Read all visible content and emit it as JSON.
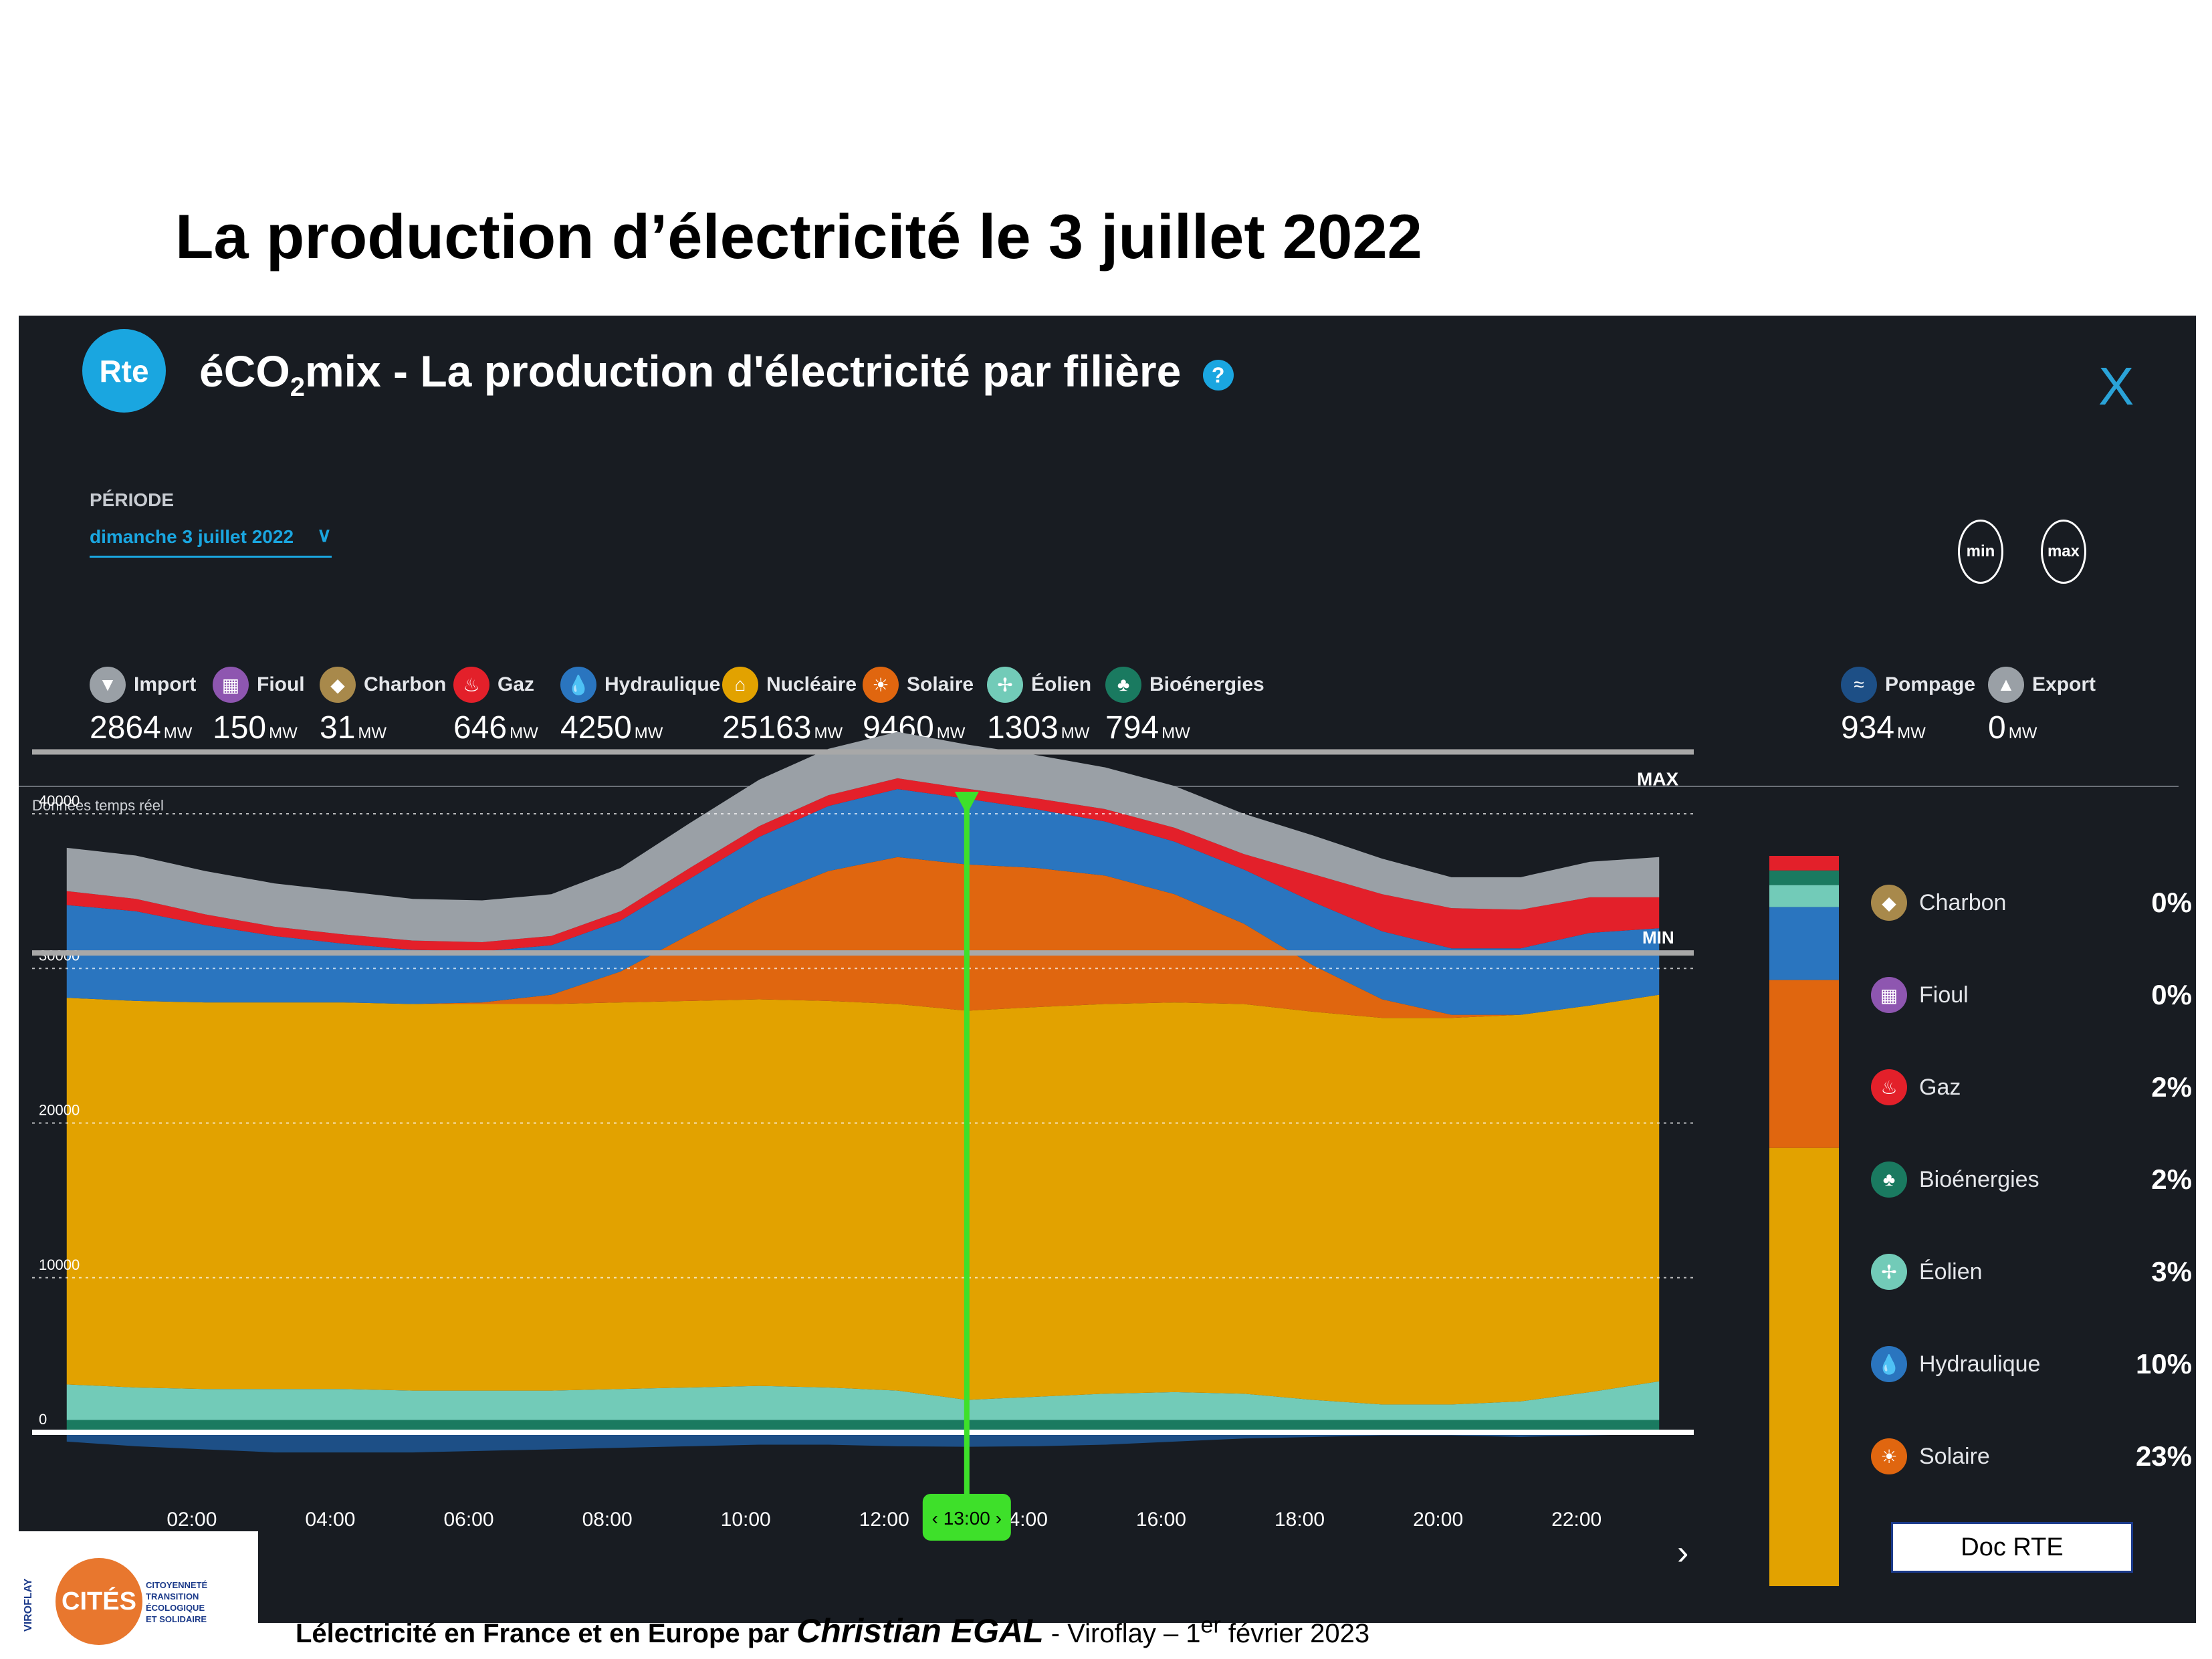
{
  "slide_title": "La production d’électricité le 3 juillet 2022",
  "app": {
    "logo_text": "Rte",
    "title_prefix": "éCO",
    "title_sub": "2",
    "title_suffix": "mix - La production d'électricité par filière",
    "help": "?",
    "close": "X"
  },
  "periode": {
    "label": "PÉRIODE",
    "value": "dimanche 3 juillet 2022"
  },
  "buttons": {
    "min": "min",
    "max": "max"
  },
  "unit": "MW",
  "sources": [
    {
      "name": "Import",
      "value": "2864",
      "color": "#9aa0a6"
    },
    {
      "name": "Fioul",
      "value": "150",
      "color": "#8e56b0"
    },
    {
      "name": "Charbon",
      "value": "31",
      "color": "#a8894b"
    },
    {
      "name": "Gaz",
      "value": "646",
      "color": "#e3202a"
    },
    {
      "name": "Hydraulique",
      "value": "4250",
      "color": "#2a75bf"
    },
    {
      "name": "Nucléaire",
      "value": "25163",
      "color": "#e2a200"
    },
    {
      "name": "Solaire",
      "value": "9460",
      "color": "#e0660f"
    },
    {
      "name": "Éolien",
      "value": "1303",
      "color": "#72cbb8"
    },
    {
      "name": "Bioénergies",
      "value": "794",
      "color": "#1a7a60"
    },
    {
      "name": "Pompage",
      "value": "934",
      "color": "#1d4f86"
    },
    {
      "name": "Export",
      "value": "0",
      "color": "#9aa0a6"
    }
  ],
  "realtime_label": "Données temps réel",
  "cursor_label": "‹ 13:00 ›",
  "max_label": "MAX",
  "min_label": "MIN",
  "legend": [
    {
      "name": "Charbon",
      "pct": "0%",
      "color": "#a8894b"
    },
    {
      "name": "Fioul",
      "pct": "0%",
      "color": "#8e56b0"
    },
    {
      "name": "Gaz",
      "pct": "2%",
      "color": "#e3202a"
    },
    {
      "name": "Bioénergies",
      "pct": "2%",
      "color": "#1a7a60"
    },
    {
      "name": "Éolien",
      "pct": "3%",
      "color": "#72cbb8"
    },
    {
      "name": "Hydraulique",
      "pct": "10%",
      "color": "#2a75bf"
    },
    {
      "name": "Solaire",
      "pct": "23%",
      "color": "#e0660f"
    }
  ],
  "doc_label": "Doc RTE",
  "footer": {
    "part1": "Lélectricité en France et en Europe par ",
    "author": "Christian EGAL",
    "part2": " - Viroflay – 1",
    "sup": "er",
    "part3": " février 2023"
  },
  "cites": {
    "badge": "CITÉS",
    "side": "VIROFLAY",
    "line1": "CITOYENNETÉ",
    "line2": "TRANSITION ÉCOLOGIQUE",
    "line3": "ET SOLIDAIRE"
  },
  "chart_data": {
    "type": "area",
    "x": [
      "00:00",
      "01:00",
      "02:00",
      "03:00",
      "04:00",
      "05:00",
      "06:00",
      "07:00",
      "08:00",
      "09:00",
      "10:00",
      "11:00",
      "12:00",
      "13:00",
      "14:00",
      "15:00",
      "16:00",
      "17:00",
      "18:00",
      "19:00",
      "20:00",
      "21:00",
      "22:00",
      "23:00"
    ],
    "x_ticks": [
      "02:00",
      "04:00",
      "06:00",
      "08:00",
      "10:00",
      "12:00",
      "14:00",
      "16:00",
      "18:00",
      "20:00",
      "22:00"
    ],
    "y_ticks": [
      0,
      10000,
      20000,
      30000,
      40000
    ],
    "ylim": [
      0,
      45000
    ],
    "ylabel": "MW",
    "max_value": 44000,
    "min_value": 31000,
    "cursor": "13:00",
    "series": [
      {
        "name": "Bioénergies",
        "color": "#1a7a60",
        "values": [
          800,
          800,
          800,
          800,
          800,
          800,
          800,
          800,
          800,
          800,
          800,
          800,
          800,
          800,
          800,
          800,
          800,
          800,
          800,
          800,
          800,
          800,
          800,
          800
        ]
      },
      {
        "name": "Éolien",
        "color": "#72cbb8",
        "values": [
          2300,
          2100,
          2000,
          2000,
          2000,
          1900,
          1900,
          1900,
          2000,
          2100,
          2200,
          2100,
          1900,
          1300,
          1500,
          1700,
          1800,
          1700,
          1300,
          1000,
          1000,
          1200,
          1800,
          2500
        ]
      },
      {
        "name": "Nucléaire",
        "color": "#e2a200",
        "values": [
          25000,
          25000,
          25000,
          25000,
          25000,
          25000,
          25000,
          25000,
          25000,
          25000,
          25000,
          25000,
          25000,
          25163,
          25200,
          25200,
          25200,
          25200,
          25100,
          25000,
          25000,
          25000,
          25000,
          25000
        ]
      },
      {
        "name": "Solaire",
        "color": "#e0660f",
        "values": [
          0,
          0,
          0,
          0,
          0,
          0,
          100,
          600,
          2000,
          4300,
          6500,
          8400,
          9500,
          9460,
          9000,
          8300,
          7000,
          5200,
          3000,
          1200,
          200,
          0,
          0,
          0
        ]
      },
      {
        "name": "Hydraulique",
        "color": "#2a75bf",
        "values": [
          6000,
          5800,
          5000,
          4300,
          3800,
          3500,
          3300,
          3200,
          3300,
          3600,
          4000,
          4200,
          4400,
          4250,
          3800,
          3500,
          3400,
          3500,
          4100,
          4400,
          4300,
          4300,
          4700,
          4300
        ]
      },
      {
        "name": "Gaz",
        "color": "#e3202a",
        "values": [
          900,
          800,
          700,
          600,
          600,
          600,
          600,
          600,
          600,
          700,
          700,
          700,
          700,
          646,
          700,
          800,
          900,
          1000,
          1800,
          2400,
          2600,
          2500,
          2300,
          2000
        ]
      },
      {
        "name": "Import",
        "color": "#9aa0a6",
        "values": [
          2800,
          2800,
          2800,
          2800,
          2800,
          2700,
          2700,
          2700,
          2800,
          2900,
          3000,
          3000,
          3000,
          2864,
          2800,
          2700,
          2700,
          2600,
          2500,
          2300,
          2000,
          2100,
          2300,
          2600
        ]
      },
      {
        "name": "Pompage",
        "color": "#1d4f86",
        "values": [
          -600,
          -900,
          -1100,
          -1300,
          -1300,
          -1300,
          -1200,
          -1100,
          -1000,
          -900,
          -800,
          -800,
          -900,
          -934,
          -900,
          -800,
          -600,
          -400,
          -300,
          -200,
          -200,
          -300,
          -200,
          -100
        ]
      }
    ],
    "bar_share": [
      {
        "name": "Gaz",
        "pct": 2,
        "color": "#e3202a"
      },
      {
        "name": "Bioénergies",
        "pct": 2,
        "color": "#1a7a60"
      },
      {
        "name": "Éolien",
        "pct": 3,
        "color": "#72cbb8"
      },
      {
        "name": "Hydraulique",
        "pct": 10,
        "color": "#2a75bf"
      },
      {
        "name": "Solaire",
        "pct": 23,
        "color": "#e0660f"
      },
      {
        "name": "Nucléaire",
        "pct": 60,
        "color": "#e2a200"
      }
    ]
  }
}
